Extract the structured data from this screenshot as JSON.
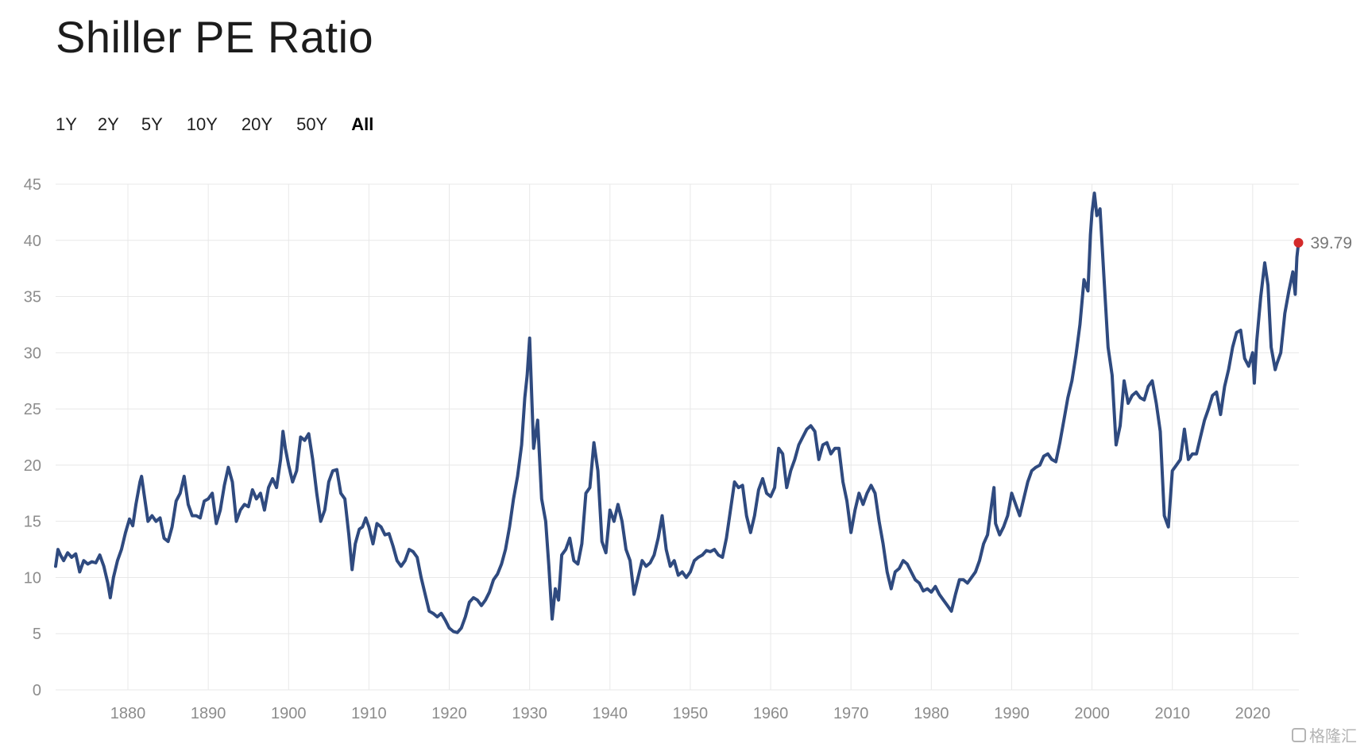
{
  "title": "Shiller PE Ratio",
  "range_tabs": [
    {
      "label": "1Y",
      "active": false
    },
    {
      "label": "2Y",
      "active": false
    },
    {
      "label": "5Y",
      "active": false
    },
    {
      "label": "10Y",
      "active": false
    },
    {
      "label": "20Y",
      "active": false
    },
    {
      "label": "50Y",
      "active": false
    },
    {
      "label": "All",
      "active": true
    }
  ],
  "watermark": "格隆汇",
  "colors": {
    "line": "#2f4a7f",
    "last_point": "#d42a2a",
    "grid": "#e8e8e8",
    "tick_text": "#8c8c8c"
  },
  "chart_data": {
    "type": "line",
    "title": "Shiller PE Ratio",
    "xlabel": "",
    "ylabel": "",
    "xlim": [
      1871,
      2025.75
    ],
    "ylim": [
      0,
      45
    ],
    "x_ticks": [
      1880,
      1890,
      1900,
      1910,
      1920,
      1930,
      1940,
      1950,
      1960,
      1970,
      1980,
      1990,
      2000,
      2010,
      2020
    ],
    "y_ticks": [
      0,
      5,
      10,
      15,
      20,
      25,
      30,
      35,
      40,
      45
    ],
    "grid": true,
    "legend": "none",
    "last_value": {
      "x": 2025.7,
      "y": 39.79,
      "label": "39.79"
    },
    "series": [
      {
        "name": "",
        "x": [
          1871.0,
          1871.3,
          1871.6,
          1872.0,
          1872.5,
          1873.0,
          1873.5,
          1874.0,
          1874.5,
          1875.0,
          1875.5,
          1876.0,
          1876.5,
          1877.0,
          1877.5,
          1877.8,
          1878.2,
          1878.7,
          1879.2,
          1879.7,
          1880.2,
          1880.6,
          1881.0,
          1881.5,
          1881.7,
          1882.0,
          1882.5,
          1883.0,
          1883.5,
          1884.0,
          1884.5,
          1885.0,
          1885.5,
          1886.0,
          1886.5,
          1887.0,
          1887.5,
          1888.0,
          1888.5,
          1889.0,
          1889.5,
          1890.0,
          1890.5,
          1891.0,
          1891.5,
          1892.0,
          1892.5,
          1893.0,
          1893.5,
          1894.0,
          1894.5,
          1895.0,
          1895.5,
          1896.0,
          1896.5,
          1897.0,
          1897.5,
          1898.0,
          1898.5,
          1899.0,
          1899.3,
          1899.6,
          1900.0,
          1900.5,
          1901.0,
          1901.5,
          1902.0,
          1902.5,
          1903.0,
          1903.5,
          1904.0,
          1904.5,
          1905.0,
          1905.5,
          1906.0,
          1906.5,
          1907.0,
          1907.5,
          1907.9,
          1908.3,
          1908.8,
          1909.2,
          1909.6,
          1910.0,
          1910.5,
          1911.0,
          1911.5,
          1912.0,
          1912.5,
          1913.0,
          1913.5,
          1914.0,
          1914.5,
          1915.0,
          1915.5,
          1916.0,
          1916.5,
          1917.0,
          1917.5,
          1918.0,
          1918.5,
          1919.0,
          1919.5,
          1920.0,
          1920.5,
          1921.0,
          1921.5,
          1922.0,
          1922.5,
          1923.0,
          1923.5,
          1924.0,
          1924.5,
          1925.0,
          1925.5,
          1926.0,
          1926.5,
          1927.0,
          1927.5,
          1928.0,
          1928.5,
          1929.0,
          1929.4,
          1929.7,
          1930.0,
          1930.5,
          1931.0,
          1931.5,
          1932.0,
          1932.4,
          1932.8,
          1933.2,
          1933.6,
          1934.0,
          1934.5,
          1935.0,
          1935.5,
          1936.0,
          1936.5,
          1937.0,
          1937.5,
          1938.0,
          1938.5,
          1939.0,
          1939.5,
          1940.0,
          1940.5,
          1941.0,
          1941.5,
          1942.0,
          1942.5,
          1943.0,
          1943.5,
          1944.0,
          1944.5,
          1945.0,
          1945.5,
          1946.0,
          1946.5,
          1947.0,
          1947.5,
          1948.0,
          1948.5,
          1949.0,
          1949.5,
          1950.0,
          1950.5,
          1951.0,
          1951.5,
          1952.0,
          1952.5,
          1953.0,
          1953.5,
          1954.0,
          1954.5,
          1955.0,
          1955.5,
          1956.0,
          1956.5,
          1957.0,
          1957.5,
          1958.0,
          1958.5,
          1959.0,
          1959.5,
          1960.0,
          1960.5,
          1961.0,
          1961.5,
          1962.0,
          1962.5,
          1963.0,
          1963.5,
          1964.0,
          1964.5,
          1965.0,
          1965.5,
          1966.0,
          1966.5,
          1967.0,
          1967.5,
          1968.0,
          1968.5,
          1969.0,
          1969.5,
          1970.0,
          1970.5,
          1971.0,
          1971.5,
          1972.0,
          1972.5,
          1973.0,
          1973.5,
          1974.0,
          1974.5,
          1975.0,
          1975.5,
          1976.0,
          1976.5,
          1977.0,
          1977.5,
          1978.0,
          1978.5,
          1979.0,
          1979.5,
          1980.0,
          1980.5,
          1981.0,
          1981.5,
          1982.0,
          1982.5,
          1983.0,
          1983.5,
          1984.0,
          1984.5,
          1985.0,
          1985.5,
          1986.0,
          1986.5,
          1987.0,
          1987.5,
          1987.8,
          1988.0,
          1988.5,
          1989.0,
          1989.5,
          1990.0,
          1990.5,
          1991.0,
          1991.5,
          1992.0,
          1992.5,
          1993.0,
          1993.5,
          1994.0,
          1994.5,
          1995.0,
          1995.5,
          1996.0,
          1996.5,
          1997.0,
          1997.5,
          1998.0,
          1998.5,
          1999.0,
          1999.5,
          1999.8,
          2000.0,
          2000.3,
          2000.6,
          2001.0,
          2001.5,
          2002.0,
          2002.5,
          2003.0,
          2003.5,
          2004.0,
          2004.5,
          2005.0,
          2005.5,
          2006.0,
          2006.5,
          2007.0,
          2007.5,
          2008.0,
          2008.5,
          2009.0,
          2009.5,
          2010.0,
          2010.5,
          2011.0,
          2011.5,
          2012.0,
          2012.5,
          2013.0,
          2013.5,
          2014.0,
          2014.5,
          2015.0,
          2015.5,
          2016.0,
          2016.5,
          2017.0,
          2017.5,
          2018.0,
          2018.5,
          2019.0,
          2019.5,
          2020.0,
          2020.2,
          2020.5,
          2021.0,
          2021.5,
          2021.9,
          2022.3,
          2022.8,
          2023.0,
          2023.5,
          2024.0,
          2024.5,
          2025.0,
          2025.3,
          2025.5,
          2025.7
        ],
        "values": [
          11.0,
          12.5,
          12.0,
          11.5,
          12.2,
          11.8,
          12.1,
          10.5,
          11.5,
          11.2,
          11.4,
          11.3,
          12.0,
          11.0,
          9.5,
          8.2,
          10.0,
          11.5,
          12.5,
          14.0,
          15.2,
          14.6,
          16.5,
          18.5,
          19.0,
          17.5,
          15.0,
          15.5,
          15.0,
          15.3,
          13.5,
          13.2,
          14.5,
          16.8,
          17.5,
          19.0,
          16.5,
          15.5,
          15.5,
          15.3,
          16.8,
          17.0,
          17.5,
          14.8,
          16.0,
          18.2,
          19.8,
          18.5,
          15.0,
          16.0,
          16.5,
          16.3,
          17.8,
          17.0,
          17.5,
          16.0,
          18.0,
          18.8,
          18.0,
          20.5,
          23.0,
          21.5,
          20.0,
          18.5,
          19.5,
          22.5,
          22.2,
          22.8,
          20.5,
          17.5,
          15.0,
          16.0,
          18.5,
          19.5,
          19.6,
          17.5,
          17.0,
          13.8,
          10.7,
          13.0,
          14.3,
          14.5,
          15.3,
          14.5,
          13.0,
          14.8,
          14.5,
          13.8,
          13.9,
          12.8,
          11.5,
          11.0,
          11.5,
          12.5,
          12.3,
          11.8,
          10.0,
          8.5,
          7.0,
          6.8,
          6.5,
          6.8,
          6.2,
          5.5,
          5.2,
          5.1,
          5.5,
          6.5,
          7.8,
          8.2,
          8.0,
          7.5,
          8.0,
          8.7,
          9.8,
          10.3,
          11.2,
          12.5,
          14.5,
          17.0,
          19.0,
          21.8,
          26.0,
          28.0,
          31.3,
          21.5,
          24.0,
          17.0,
          15.0,
          11.0,
          6.3,
          9.0,
          8.0,
          12.0,
          12.5,
          13.5,
          11.5,
          11.2,
          13.0,
          17.5,
          18.0,
          22.0,
          19.5,
          13.2,
          12.2,
          16.0,
          15.0,
          16.5,
          15.0,
          12.5,
          11.5,
          8.5,
          10.0,
          11.5,
          11.0,
          11.3,
          12.0,
          13.5,
          15.5,
          12.5,
          11.0,
          11.5,
          10.2,
          10.5,
          10.0,
          10.5,
          11.5,
          11.8,
          12.0,
          12.4,
          12.3,
          12.5,
          12.0,
          11.8,
          13.5,
          16.0,
          18.5,
          18.0,
          18.2,
          15.5,
          14.0,
          15.5,
          17.8,
          18.8,
          17.5,
          17.2,
          18.0,
          21.5,
          21.0,
          18.0,
          19.5,
          20.5,
          21.8,
          22.5,
          23.2,
          23.5,
          23.0,
          20.5,
          21.8,
          22.0,
          21.0,
          21.5,
          21.5,
          18.5,
          16.8,
          14.0,
          16.0,
          17.5,
          16.5,
          17.5,
          18.2,
          17.5,
          15.0,
          13.0,
          10.5,
          9.0,
          10.5,
          10.8,
          11.5,
          11.2,
          10.5,
          9.8,
          9.5,
          8.8,
          9.0,
          8.7,
          9.2,
          8.5,
          8.0,
          7.5,
          7.0,
          8.5,
          9.8,
          9.8,
          9.5,
          10.0,
          10.5,
          11.5,
          13.0,
          13.8,
          16.5,
          18.0,
          14.8,
          13.8,
          14.5,
          15.5,
          17.5,
          16.5,
          15.5,
          17.0,
          18.5,
          19.5,
          19.8,
          20.0,
          20.8,
          21.0,
          20.5,
          20.3,
          22.0,
          24.0,
          26.0,
          27.5,
          29.8,
          32.5,
          36.5,
          35.5,
          40.5,
          42.5,
          44.2,
          42.2,
          42.8,
          36.5,
          30.5,
          28.0,
          21.8,
          23.5,
          27.5,
          25.5,
          26.2,
          26.5,
          26.0,
          25.8,
          27.0,
          27.5,
          25.5,
          23.0,
          15.5,
          14.5,
          19.5,
          20.0,
          20.5,
          23.2,
          20.5,
          21.0,
          21.0,
          22.5,
          24.0,
          25.0,
          26.2,
          26.5,
          24.5,
          27.0,
          28.5,
          30.5,
          31.8,
          32.0,
          29.5,
          28.8,
          30.0,
          27.3,
          31.0,
          35.0,
          38.0,
          36.0,
          30.5,
          28.5,
          29.0,
          30.0,
          33.5,
          35.5,
          37.2,
          35.2,
          38.5,
          39.79
        ]
      }
    ]
  }
}
